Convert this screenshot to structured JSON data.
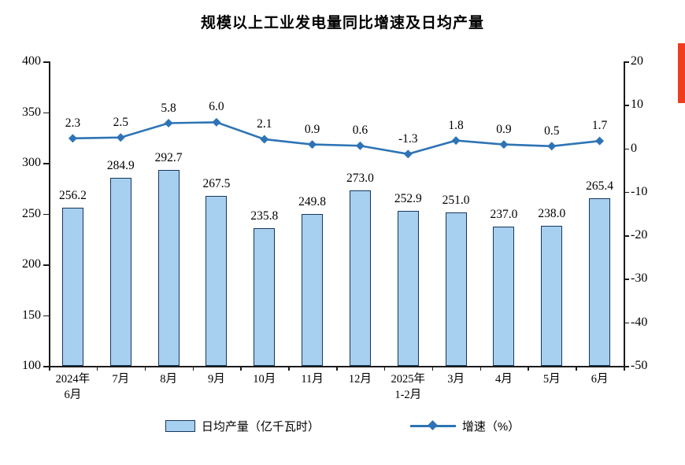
{
  "title": "规模以上工业发电量同比增速及日均产量",
  "chart_data": {
    "type": "combo",
    "categories": [
      "2024年\n6月",
      "7月",
      "8月",
      "9月",
      "10月",
      "11月",
      "12月",
      "2025年\n1-2月",
      "3月",
      "4月",
      "5月",
      "6月"
    ],
    "series": [
      {
        "name": "日均产量（亿千瓦时）",
        "type": "bar",
        "axis": "left",
        "values": [
          256.2,
          284.9,
          292.7,
          267.5,
          235.8,
          249.8,
          273.0,
          252.9,
          251.0,
          237.0,
          238.0,
          265.4
        ],
        "fill_color": "#a7cfef",
        "border_color": "#17365d"
      },
      {
        "name": "增速（%）",
        "type": "line",
        "axis": "right",
        "values": [
          2.3,
          2.5,
          5.8,
          6.0,
          2.1,
          0.9,
          0.6,
          -1.3,
          1.8,
          0.9,
          0.5,
          1.7
        ],
        "color": "#2e74b5",
        "marker": "diamond"
      }
    ],
    "left_axis": {
      "min": 100,
      "max": 400,
      "ticks": [
        400,
        350,
        300,
        250,
        200,
        150,
        100
      ]
    },
    "right_axis": {
      "min": -50,
      "max": 20,
      "ticks": [
        20,
        10,
        0,
        -10,
        -20,
        -30,
        -40,
        -50
      ]
    },
    "legend": [
      {
        "label": "日均产量（亿千瓦时）",
        "type": "bar"
      },
      {
        "label": "增速（%）",
        "type": "line"
      }
    ],
    "grid": false,
    "legend_position": "bottom"
  }
}
